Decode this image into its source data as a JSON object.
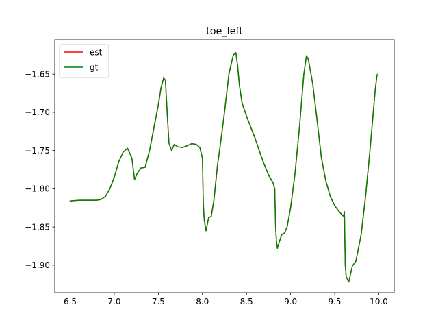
{
  "chart_data": {
    "type": "line",
    "title": "toe_left",
    "xlabel": "",
    "ylabel": "",
    "xlim": [
      6.325,
      10.175
    ],
    "ylim": [
      -1.936,
      -1.605
    ],
    "xticks": [
      6.5,
      7.0,
      7.5,
      8.0,
      8.5,
      9.0,
      9.5,
      10.0
    ],
    "xtick_labels": [
      "6.5",
      "7.0",
      "7.5",
      "8.0",
      "8.5",
      "9.0",
      "9.5",
      "10.0"
    ],
    "yticks": [
      -1.9,
      -1.85,
      -1.8,
      -1.75,
      -1.7,
      -1.65
    ],
    "ytick_labels": [
      "−1.90",
      "−1.85",
      "−1.80",
      "−1.75",
      "−1.70",
      "−1.65"
    ],
    "grid": false,
    "legend_position": "top-left",
    "series": [
      {
        "name": "est",
        "color": "#ff0000",
        "x": [
          6.5,
          6.6,
          6.7,
          6.8,
          6.85,
          6.9,
          6.95,
          7.0,
          7.05,
          7.1,
          7.15,
          7.2,
          7.23,
          7.26,
          7.3,
          7.35,
          7.4,
          7.45,
          7.5,
          7.53,
          7.56,
          7.58,
          7.6,
          7.62,
          7.65,
          7.68,
          7.72,
          7.77,
          7.82,
          7.88,
          7.93,
          7.97,
          8.0,
          8.01,
          8.02,
          8.04,
          8.07,
          8.1,
          8.13,
          8.17,
          8.2,
          8.25,
          8.3,
          8.35,
          8.38,
          8.4,
          8.42,
          8.45,
          8.5,
          8.55,
          8.6,
          8.65,
          8.7,
          8.75,
          8.8,
          8.82,
          8.83,
          8.84,
          8.85,
          8.87,
          8.9,
          8.93,
          8.96,
          9.0,
          9.05,
          9.1,
          9.15,
          9.18,
          9.2,
          9.25,
          9.3,
          9.35,
          9.4,
          9.45,
          9.5,
          9.55,
          9.6,
          9.61,
          9.62,
          9.63,
          9.66,
          9.7,
          9.74,
          9.8,
          9.85,
          9.9,
          9.93,
          9.96,
          9.98,
          9.99
        ],
        "y": [
          -1.816,
          -1.815,
          -1.815,
          -1.815,
          -1.814,
          -1.81,
          -1.8,
          -1.785,
          -1.765,
          -1.752,
          -1.747,
          -1.76,
          -1.788,
          -1.78,
          -1.773,
          -1.772,
          -1.75,
          -1.72,
          -1.69,
          -1.668,
          -1.655,
          -1.658,
          -1.7,
          -1.74,
          -1.75,
          -1.742,
          -1.745,
          -1.746,
          -1.744,
          -1.741,
          -1.742,
          -1.746,
          -1.76,
          -1.82,
          -1.84,
          -1.855,
          -1.838,
          -1.836,
          -1.815,
          -1.77,
          -1.745,
          -1.7,
          -1.65,
          -1.625,
          -1.622,
          -1.64,
          -1.665,
          -1.688,
          -1.705,
          -1.72,
          -1.735,
          -1.752,
          -1.768,
          -1.782,
          -1.792,
          -1.8,
          -1.85,
          -1.87,
          -1.878,
          -1.87,
          -1.86,
          -1.858,
          -1.85,
          -1.825,
          -1.78,
          -1.72,
          -1.65,
          -1.626,
          -1.63,
          -1.662,
          -1.71,
          -1.76,
          -1.79,
          -1.81,
          -1.822,
          -1.83,
          -1.836,
          -1.83,
          -1.9,
          -1.915,
          -1.922,
          -1.901,
          -1.895,
          -1.86,
          -1.81,
          -1.75,
          -1.71,
          -1.67,
          -1.651,
          -1.65
        ]
      },
      {
        "name": "gt",
        "color": "#008000",
        "x": [
          6.5,
          6.6,
          6.7,
          6.8,
          6.85,
          6.9,
          6.95,
          7.0,
          7.05,
          7.1,
          7.15,
          7.2,
          7.23,
          7.26,
          7.3,
          7.35,
          7.4,
          7.45,
          7.5,
          7.53,
          7.56,
          7.58,
          7.6,
          7.62,
          7.65,
          7.68,
          7.72,
          7.77,
          7.82,
          7.88,
          7.93,
          7.97,
          8.0,
          8.01,
          8.02,
          8.04,
          8.07,
          8.1,
          8.13,
          8.17,
          8.2,
          8.25,
          8.3,
          8.35,
          8.38,
          8.4,
          8.42,
          8.45,
          8.5,
          8.55,
          8.6,
          8.65,
          8.7,
          8.75,
          8.8,
          8.82,
          8.83,
          8.84,
          8.85,
          8.87,
          8.9,
          8.93,
          8.96,
          9.0,
          9.05,
          9.1,
          9.15,
          9.18,
          9.2,
          9.25,
          9.3,
          9.35,
          9.4,
          9.45,
          9.5,
          9.55,
          9.6,
          9.61,
          9.62,
          9.63,
          9.66,
          9.7,
          9.74,
          9.8,
          9.85,
          9.9,
          9.93,
          9.96,
          9.98,
          9.99
        ],
        "y": [
          -1.816,
          -1.815,
          -1.815,
          -1.815,
          -1.814,
          -1.81,
          -1.8,
          -1.785,
          -1.765,
          -1.752,
          -1.747,
          -1.76,
          -1.788,
          -1.78,
          -1.773,
          -1.772,
          -1.75,
          -1.72,
          -1.69,
          -1.668,
          -1.655,
          -1.658,
          -1.7,
          -1.74,
          -1.75,
          -1.742,
          -1.745,
          -1.746,
          -1.744,
          -1.741,
          -1.742,
          -1.746,
          -1.76,
          -1.82,
          -1.84,
          -1.855,
          -1.838,
          -1.836,
          -1.815,
          -1.77,
          -1.745,
          -1.7,
          -1.65,
          -1.625,
          -1.622,
          -1.64,
          -1.665,
          -1.688,
          -1.705,
          -1.72,
          -1.735,
          -1.752,
          -1.768,
          -1.782,
          -1.792,
          -1.8,
          -1.85,
          -1.87,
          -1.878,
          -1.87,
          -1.86,
          -1.858,
          -1.85,
          -1.825,
          -1.78,
          -1.72,
          -1.65,
          -1.626,
          -1.63,
          -1.662,
          -1.71,
          -1.76,
          -1.79,
          -1.81,
          -1.822,
          -1.83,
          -1.836,
          -1.83,
          -1.9,
          -1.915,
          -1.922,
          -1.901,
          -1.895,
          -1.86,
          -1.81,
          -1.75,
          -1.71,
          -1.67,
          -1.651,
          -1.65
        ]
      }
    ]
  }
}
